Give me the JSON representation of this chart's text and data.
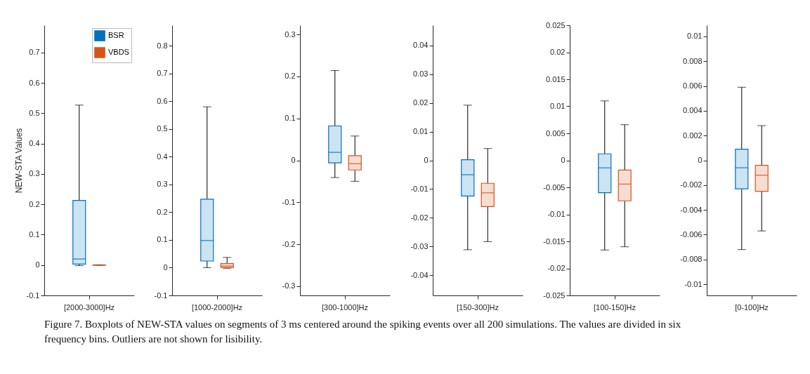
{
  "chart_data": [
    {
      "type": "box",
      "ylabel": "NEW-STA Values",
      "categories": [
        "[2000-3000]Hz"
      ],
      "ylim": [
        -0.1,
        0.79
      ],
      "yticks": [
        -0.1,
        0,
        0.1,
        0.2,
        0.3,
        0.4,
        0.5,
        0.6,
        0.7
      ],
      "legend": "top right",
      "grid": false,
      "series": [
        {
          "name": "BSR",
          "color": "#0072bd",
          "boxes": [
            {
              "low": -0.002,
              "q1": 0.003,
              "median": 0.02,
              "q3": 0.213,
              "high": 0.527
            }
          ]
        },
        {
          "name": "VBDS",
          "color": "#d95319",
          "boxes": [
            {
              "low": -0.001,
              "q1": -0.0005,
              "median": 0,
              "q3": 0.0005,
              "high": 0.001
            }
          ]
        }
      ]
    },
    {
      "type": "box",
      "categories": [
        "[1000-2000]Hz"
      ],
      "ylim": [
        -0.1,
        0.874
      ],
      "yticks": [
        -0.1,
        0,
        0.1,
        0.2,
        0.3,
        0.4,
        0.5,
        0.6,
        0.7,
        0.8
      ],
      "grid": false,
      "series": [
        {
          "color": "#0072bd",
          "boxes": [
            {
              "low": 0,
              "q1": 0.024,
              "median": 0.098,
              "q3": 0.247,
              "high": 0.58
            }
          ]
        },
        {
          "color": "#d95319",
          "boxes": [
            {
              "low": -0.002,
              "q1": 0.001,
              "median": 0.006,
              "q3": 0.015,
              "high": 0.037
            }
          ]
        }
      ]
    },
    {
      "type": "box",
      "categories": [
        "[300-1000]Hz"
      ],
      "ylim": [
        -0.322,
        0.322
      ],
      "yticks": [
        -0.3,
        -0.2,
        -0.1,
        0,
        0.1,
        0.2,
        0.3
      ],
      "grid": false,
      "series": [
        {
          "color": "#0072bd",
          "boxes": [
            {
              "low": -0.041,
              "q1": -0.006,
              "median": 0.019,
              "q3": 0.082,
              "high": 0.214
            }
          ]
        },
        {
          "color": "#d95319",
          "boxes": [
            {
              "low": -0.05,
              "q1": -0.023,
              "median": -0.008,
              "q3": 0.011,
              "high": 0.058
            }
          ]
        }
      ]
    },
    {
      "type": "box",
      "categories": [
        "[150-300]Hz"
      ],
      "ylim": [
        -0.047,
        0.047
      ],
      "yticks": [
        -0.04,
        -0.03,
        -0.02,
        -0.01,
        0,
        0.01,
        0.02,
        0.03,
        0.04
      ],
      "grid": false,
      "series": [
        {
          "color": "#0072bd",
          "boxes": [
            {
              "low": -0.0311,
              "q1": -0.0124,
              "median": -0.005,
              "q3": 0.0002,
              "high": 0.0192
            }
          ]
        },
        {
          "color": "#d95319",
          "boxes": [
            {
              "low": -0.0283,
              "q1": -0.0161,
              "median": -0.0113,
              "q3": -0.008,
              "high": 0.0041
            }
          ]
        }
      ]
    },
    {
      "type": "box",
      "categories": [
        "[100-150]Hz"
      ],
      "ylim": [
        -0.025,
        0.025
      ],
      "yticks": [
        -0.025,
        -0.02,
        -0.015,
        -0.01,
        -0.005,
        0,
        0.005,
        0.01,
        0.015,
        0.02,
        0.025
      ],
      "grid": false,
      "series": [
        {
          "color": "#0072bd",
          "boxes": [
            {
              "low": -0.0166,
              "q1": -0.006,
              "median": -0.0014,
              "q3": 0.0012,
              "high": 0.011
            }
          ]
        },
        {
          "color": "#d95319",
          "boxes": [
            {
              "low": -0.016,
              "q1": -0.0075,
              "median": -0.0044,
              "q3": -0.0018,
              "high": 0.0066
            }
          ]
        }
      ]
    },
    {
      "type": "box",
      "categories": [
        "[0-100]Hz"
      ],
      "ylim": [
        -0.0109,
        0.0109
      ],
      "yticks": [
        -0.01,
        -0.008,
        -0.006,
        -0.004,
        -0.002,
        0,
        0.002,
        0.004,
        0.006,
        0.008,
        0.01
      ],
      "grid": false,
      "annotations": [
        "Figure 7. Boxplots of NEW-STA values on segments of 3 ms centered around the spiking events over all 200 simulations. The values are divided in six frequency bins. Outliers are not shown for lisibility."
      ],
      "series": [
        {
          "color": "#0072bd",
          "boxes": [
            {
              "low": -0.0072,
              "q1": -0.0023,
              "median": -0.0006,
              "q3": 0.0009,
              "high": 0.0059
            }
          ]
        },
        {
          "color": "#d95319",
          "boxes": [
            {
              "low": -0.0057,
              "q1": -0.0025,
              "median": -0.0012,
              "q3": -0.0004,
              "high": 0.0028
            }
          ]
        }
      ]
    }
  ]
}
